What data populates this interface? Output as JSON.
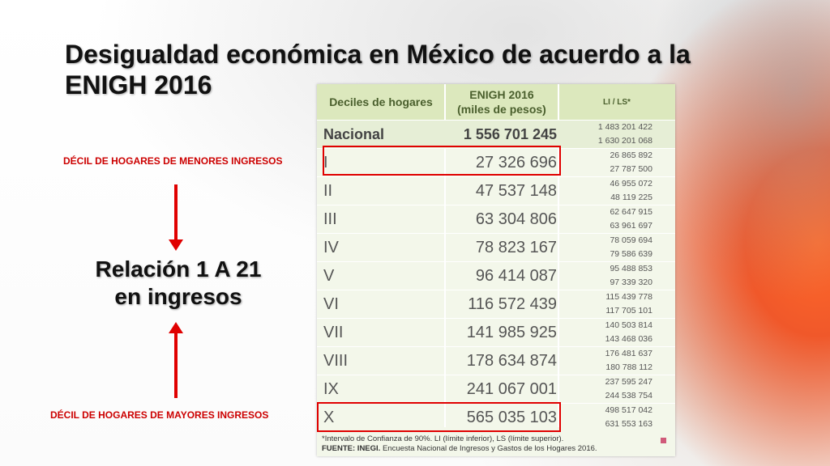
{
  "slide": {
    "title": "Desigualdad económica en México de acuerdo a la ENIGH 2016",
    "label_top": "DÉCIL DE HOGARES DE MENORES INGRESOS",
    "label_bottom": "DÉCIL DE HOGARES DE MAYORES INGRESOS",
    "relation_line1": "Relación 1 A 21",
    "relation_line2": "en ingresos"
  },
  "table": {
    "headers": {
      "deciles": "Deciles de hogares",
      "enigh_line1": "ENIGH 2016",
      "enigh_line2": "(miles de pesos)",
      "li_ls": "LI / LS*"
    },
    "rows": [
      {
        "decil": "Nacional",
        "value": "1 556 701 245",
        "li": "1 483 201 422",
        "ls": "1 630 201 068"
      },
      {
        "decil": "I",
        "value": "27 326 696",
        "li": "26 865 892",
        "ls": "27 787 500"
      },
      {
        "decil": "II",
        "value": "47 537 148",
        "li": "46 955 072",
        "ls": "48 119 225"
      },
      {
        "decil": "III",
        "value": "63 304 806",
        "li": "62 647 915",
        "ls": "63 961 697"
      },
      {
        "decil": "IV",
        "value": "78 823 167",
        "li": "78 059 694",
        "ls": "79 586 639"
      },
      {
        "decil": "V",
        "value": "96 414 087",
        "li": "95 488 853",
        "ls": "97 339 320"
      },
      {
        "decil": "VI",
        "value": "116 572 439",
        "li": "115 439 778",
        "ls": "117 705 101"
      },
      {
        "decil": "VII",
        "value": "141 985 925",
        "li": "140 503 814",
        "ls": "143 468 036"
      },
      {
        "decil": "VIII",
        "value": "178 634 874",
        "li": "176 481 637",
        "ls": "180 788 112"
      },
      {
        "decil": "IX",
        "value": "241 067 001",
        "li": "237 595 247",
        "ls": "244 538 754"
      },
      {
        "decil": "X",
        "value": "565 035 103",
        "li": "498 517 042",
        "ls": "631 553 163"
      }
    ],
    "footnote": "*Intervalo de Confianza de 90%. LI (límite inferior), LS (límite superior).",
    "source_label": "FUENTE: INEGI.",
    "source_text": " Encuesta Nacional de Ingresos y Gastos de los Hogares 2016."
  },
  "colors": {
    "accent_red": "#e00000",
    "header_green": "#dce8bd",
    "header_text": "#4a5f2d"
  }
}
